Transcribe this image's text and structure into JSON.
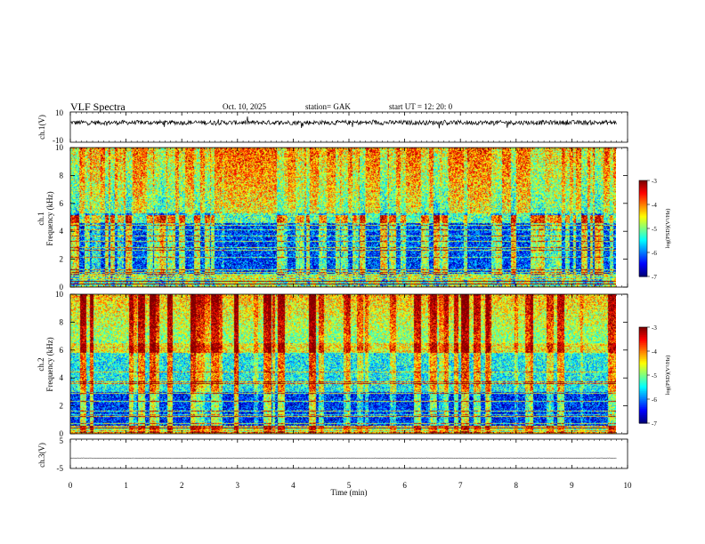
{
  "header": {
    "title": "VLF  Spectra",
    "date": "Oct. 10, 2025",
    "station": "station= GAK",
    "start_ut": "start  UT  =   12: 20: 0"
  },
  "chart_data": [
    {
      "id": "ch1-waveform",
      "type": "line",
      "ylabel": "ch.1(V)",
      "ylim": [
        -10,
        10
      ],
      "y_ticks": [
        "10",
        "-10"
      ],
      "baseline": 3,
      "noise": 1.5,
      "x_range": [
        0,
        9.8
      ]
    },
    {
      "id": "ch1-spectrogram",
      "type": "heatmap",
      "ylabel": "ch.1\nFrequency  (kHz)",
      "ylim": [
        0,
        10
      ],
      "y_ticks": [
        "0",
        "2",
        "4",
        "6",
        "8",
        "10"
      ],
      "x_range": [
        0,
        9.8
      ],
      "colorbar": {
        "label": "log(PSD)(V²/Hz)",
        "range": [
          -7,
          -3
        ],
        "ticks": [
          "-3",
          "-4",
          "-5",
          "-6",
          "-7"
        ]
      }
    },
    {
      "id": "ch2-spectrogram",
      "type": "heatmap",
      "ylabel": "ch.2\nFrequency  (kHz)",
      "ylim": [
        0,
        10
      ],
      "y_ticks": [
        "0",
        "2",
        "4",
        "6",
        "8",
        "10"
      ],
      "x_range": [
        0,
        9.8
      ],
      "colorbar": {
        "label": "log(PSD)(V²/Hz)",
        "range": [
          -7,
          -3
        ],
        "ticks": [
          "-3",
          "-4",
          "-5",
          "-6",
          "-7"
        ]
      }
    },
    {
      "id": "ch3-waveform",
      "type": "line",
      "ylabel": "ch.3(V)",
      "ylim": [
        -5,
        5
      ],
      "y_ticks": [
        "5",
        "-5"
      ],
      "baseline": -1.5,
      "noise": 0.12,
      "x_range": [
        0,
        9.8
      ]
    }
  ],
  "x_axis": {
    "label": "Time  (min)",
    "ticks": [
      "0",
      "1",
      "2",
      "3",
      "4",
      "5",
      "6",
      "7",
      "8",
      "9",
      "10"
    ],
    "xlim": [
      0,
      10
    ]
  },
  "colors": {
    "jet": [
      "#00007f",
      "#0000ff",
      "#007fff",
      "#00ffff",
      "#7fff7f",
      "#ffff00",
      "#ff7f00",
      "#ff0000",
      "#7f0000"
    ]
  }
}
